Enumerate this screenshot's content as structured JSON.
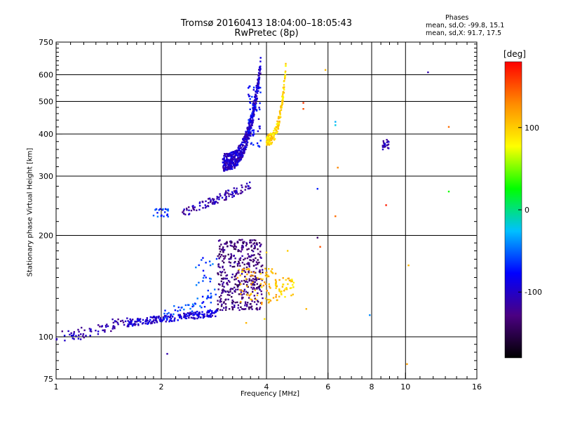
{
  "header": {
    "title_line1": "Tromsø 20160413 18:04:00–18:05:43",
    "title_line2": "RwPretec (8p)"
  },
  "phase_stats": {
    "heading": "Phases",
    "line_o": "mean, sd,O: -99.8, 15.1",
    "line_x": "mean, sd,X: 91.7, 17.5"
  },
  "chart_data": {
    "type": "scatter",
    "xlabel": "Frequency [MHz]",
    "ylabel": "Stationary phase Virtual Height [km]",
    "x_scale": "log",
    "y_scale": "log",
    "xlim": [
      1,
      16
    ],
    "ylim": [
      75,
      750
    ],
    "x_ticks": [
      1,
      2,
      4,
      6,
      8,
      10,
      16
    ],
    "y_ticks": [
      75,
      100,
      200,
      300,
      400,
      500,
      600,
      750
    ],
    "x_minor_ticks": [
      1.1,
      1.2,
      1.3,
      1.4,
      1.5,
      1.6,
      1.7,
      1.8,
      1.9,
      2.2,
      2.4,
      2.6,
      2.8,
      3,
      3.2,
      3.4,
      3.6,
      3.8,
      4.5,
      5,
      5.5,
      6.5,
      7,
      7.5,
      8.5,
      9,
      9.5,
      11,
      12,
      13,
      14,
      15
    ],
    "y_minor_ticks": [
      80,
      85,
      90,
      95,
      110,
      120,
      130,
      140,
      150,
      160,
      170,
      180,
      190,
      220,
      240,
      260,
      280,
      320,
      340,
      360,
      380,
      420,
      440,
      460,
      480,
      520,
      540,
      560,
      580,
      620,
      640,
      660,
      680,
      700,
      720,
      740
    ],
    "grid_x": [
      2,
      4,
      6,
      8,
      10
    ],
    "grid_y": [
      100,
      200,
      300,
      400,
      500,
      600
    ],
    "grid": true,
    "colorbar": {
      "label": "[deg]",
      "min": -180,
      "max": 180,
      "ticks": [
        -100,
        0,
        100
      ],
      "colors": [
        "#000000",
        "#4b0082",
        "#0000ff",
        "#00c0ff",
        "#00ff00",
        "#ffff00",
        "#ff8c00",
        "#ff0000"
      ]
    },
    "clusters": [
      {
        "x0": 1.0,
        "x1": 1.6,
        "y0": 100,
        "y1": 112,
        "yshape": "curve_low",
        "phase": -110,
        "n": 70,
        "spread": 0.04
      },
      {
        "x0": 1.6,
        "x1": 2.9,
        "y0": 110,
        "y1": 118,
        "yshape": "linear",
        "phase": -95,
        "n": 220,
        "spread": 0.025
      },
      {
        "x0": 2.0,
        "x1": 2.8,
        "y0": 115,
        "y1": 130,
        "yshape": "linear",
        "phase": -60,
        "n": 40,
        "spread": 0.04
      },
      {
        "x0": 2.9,
        "x1": 3.9,
        "y0": 120,
        "y1": 195,
        "yshape": "random",
        "phase": -130,
        "n": 420,
        "spread": 0
      },
      {
        "x0": 3.3,
        "x1": 4.3,
        "y0": 125,
        "y1": 160,
        "yshape": "random",
        "phase": 110,
        "n": 80,
        "spread": 0
      },
      {
        "x0": 4.2,
        "x1": 4.8,
        "y0": 130,
        "y1": 150,
        "yshape": "random",
        "phase": 100,
        "n": 40,
        "spread": 0
      },
      {
        "x0": 2.5,
        "x1": 2.9,
        "y0": 130,
        "y1": 175,
        "yshape": "random",
        "phase": -60,
        "n": 25,
        "spread": 0
      },
      {
        "x0": 1.9,
        "x1": 2.1,
        "y0": 226,
        "y1": 240,
        "yshape": "random",
        "phase": -60,
        "n": 22,
        "spread": 0
      },
      {
        "x0": 2.3,
        "x1": 3.6,
        "y0": 232,
        "y1": 282,
        "yshape": "linear",
        "phase": -110,
        "n": 110,
        "spread": 0.03
      },
      {
        "x0": 3.0,
        "x1": 3.85,
        "y0": 330,
        "y1": 640,
        "yshape": "steep",
        "phase": -100,
        "n": 520,
        "spread": 0.06
      },
      {
        "x0": 3.55,
        "x1": 3.85,
        "y0": 360,
        "y1": 560,
        "yshape": "random",
        "phase": -80,
        "n": 60,
        "spread": 0
      },
      {
        "x0": 4.0,
        "x1": 4.55,
        "y0": 385,
        "y1": 640,
        "yshape": "steep",
        "phase": 95,
        "n": 160,
        "spread": 0.04
      },
      {
        "x0": 8.6,
        "x1": 8.95,
        "y0": 360,
        "y1": 385,
        "yshape": "random",
        "phase": -110,
        "n": 22,
        "spread": 0
      }
    ],
    "points": [
      {
        "x": 5.1,
        "y": 495,
        "phase": 160
      },
      {
        "x": 5.1,
        "y": 475,
        "phase": 150
      },
      {
        "x": 5.9,
        "y": 620,
        "phase": 110
      },
      {
        "x": 6.3,
        "y": 425,
        "phase": -20
      },
      {
        "x": 6.3,
        "y": 435,
        "phase": -30
      },
      {
        "x": 6.4,
        "y": 318,
        "phase": 130
      },
      {
        "x": 5.6,
        "y": 275,
        "phase": -70
      },
      {
        "x": 6.3,
        "y": 228,
        "phase": 140
      },
      {
        "x": 5.6,
        "y": 197,
        "phase": -140
      },
      {
        "x": 5.7,
        "y": 185,
        "phase": 150
      },
      {
        "x": 8.8,
        "y": 246,
        "phase": 170
      },
      {
        "x": 7.9,
        "y": 116,
        "phase": -40
      },
      {
        "x": 10.2,
        "y": 163,
        "phase": 110
      },
      {
        "x": 10.1,
        "y": 83,
        "phase": 120
      },
      {
        "x": 11.6,
        "y": 610,
        "phase": -110
      },
      {
        "x": 13.3,
        "y": 420,
        "phase": 140
      },
      {
        "x": 13.3,
        "y": 270,
        "phase": 30
      },
      {
        "x": 3.95,
        "y": 113,
        "phase": 90
      },
      {
        "x": 3.5,
        "y": 110,
        "phase": 110
      },
      {
        "x": 2.08,
        "y": 89,
        "phase": -110
      },
      {
        "x": 5.2,
        "y": 121,
        "phase": 110
      },
      {
        "x": 4.0,
        "y": 178,
        "phase": 100
      },
      {
        "x": 4.6,
        "y": 180,
        "phase": 100
      }
    ]
  }
}
